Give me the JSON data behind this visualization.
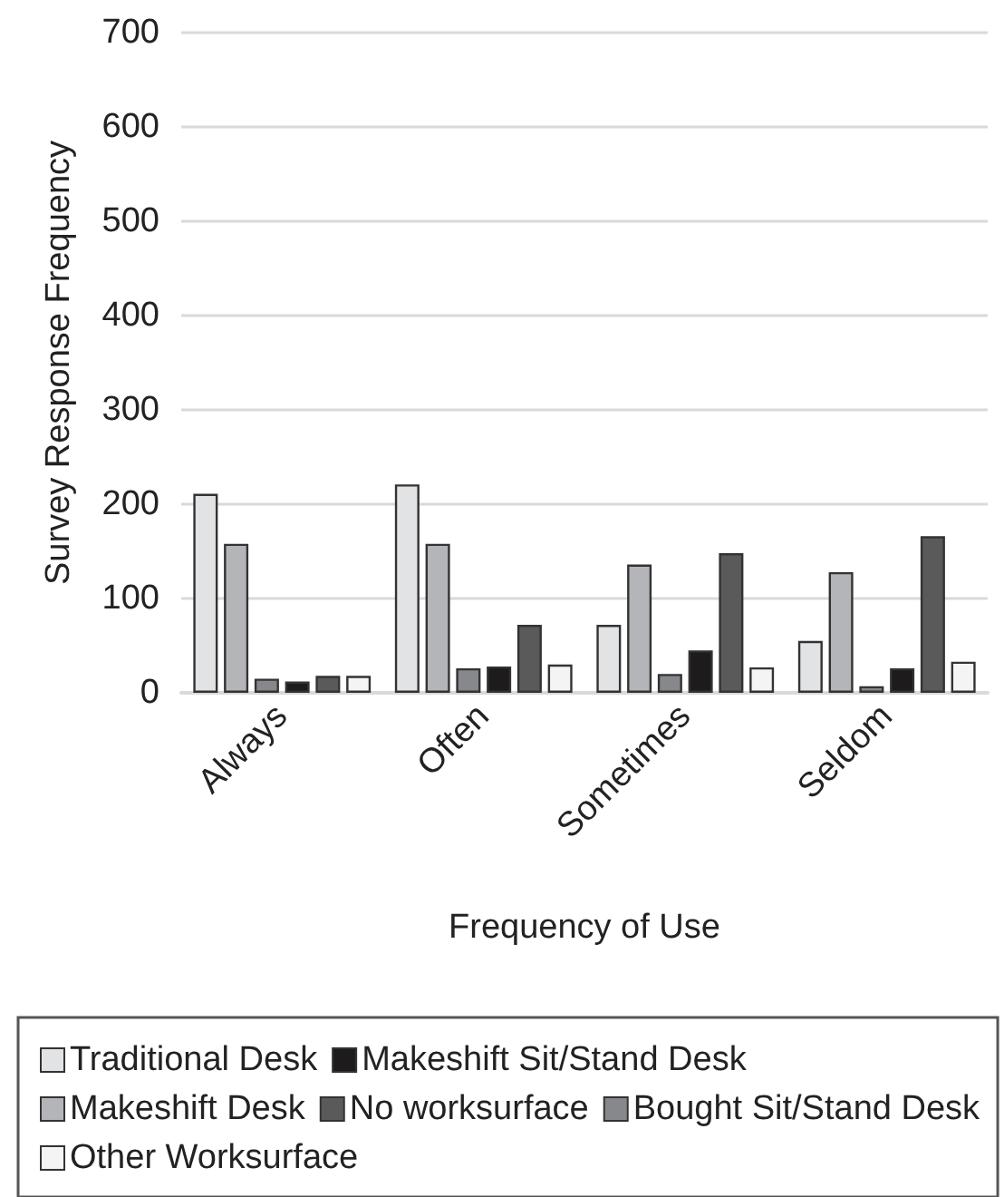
{
  "chart_data": {
    "type": "bar",
    "xlabel": "Frequency of Use",
    "ylabel": "Survey Response Frequency",
    "categories": [
      "Always",
      "Often",
      "Sometimes",
      "Seldom"
    ],
    "series": [
      {
        "name": "Traditional Desk",
        "color": "#e2e3e5",
        "values": [
          211,
          221,
          72,
          55
        ]
      },
      {
        "name": "Makeshift Desk",
        "color": "#b4b5b8",
        "values": [
          158,
          158,
          136,
          128
        ]
      },
      {
        "name": "Bought Sit/Stand Desk",
        "color": "#86888b",
        "values": [
          15,
          26,
          20,
          7
        ]
      },
      {
        "name": "Makeshift Sit/Stand Desk",
        "color": "#1e1b1c",
        "values": [
          12,
          28,
          45,
          26
        ]
      },
      {
        "name": "No worksurface",
        "color": "#5a5a5a",
        "values": [
          18,
          72,
          148,
          166
        ]
      },
      {
        "name": "Other Worksurface",
        "color": "#f4f4f4",
        "values": [
          18,
          30,
          27,
          33
        ]
      }
    ],
    "ylim": [
      0,
      700
    ],
    "yticks": [
      0,
      100,
      200,
      300,
      400,
      500,
      600,
      700
    ],
    "grid": "y",
    "legend": "bottom"
  }
}
